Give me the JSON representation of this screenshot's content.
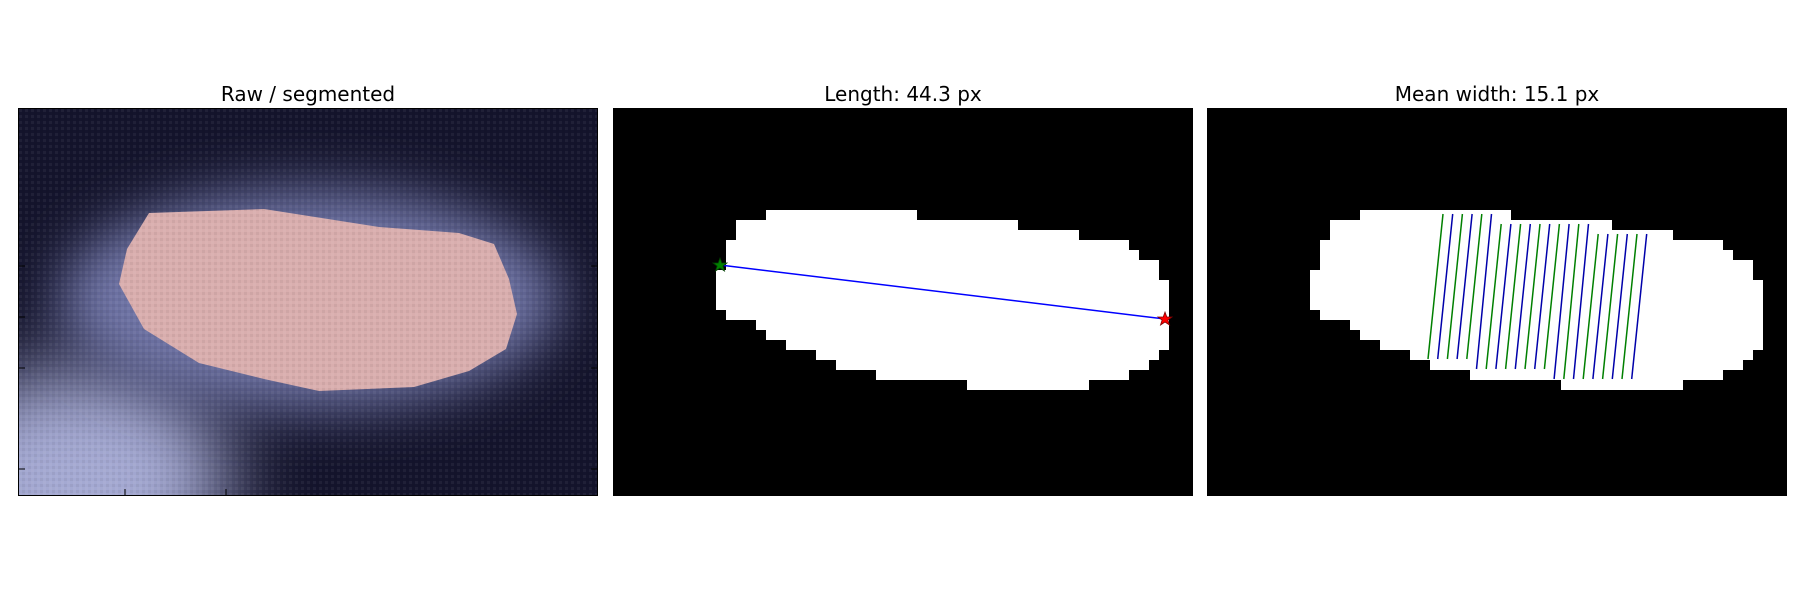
{
  "panels": [
    {
      "title": "Raw / segmented"
    },
    {
      "title": "Length: 44.3 px"
    },
    {
      "title": "Mean width: 15.1 px"
    }
  ],
  "colors": {
    "background_dark": "#14142c",
    "raw_glow": "#9ea3cc",
    "segmented_overlay": "#d9aeae",
    "mask_foreground": "#ffffff",
    "mask_background": "#000000",
    "length_line": "#0000ff",
    "start_marker": "#008000",
    "end_marker": "#ff0000",
    "width_line_a": "#008000",
    "width_line_b": "#0000aa"
  },
  "markers": {
    "start": "star",
    "end": "star"
  }
}
